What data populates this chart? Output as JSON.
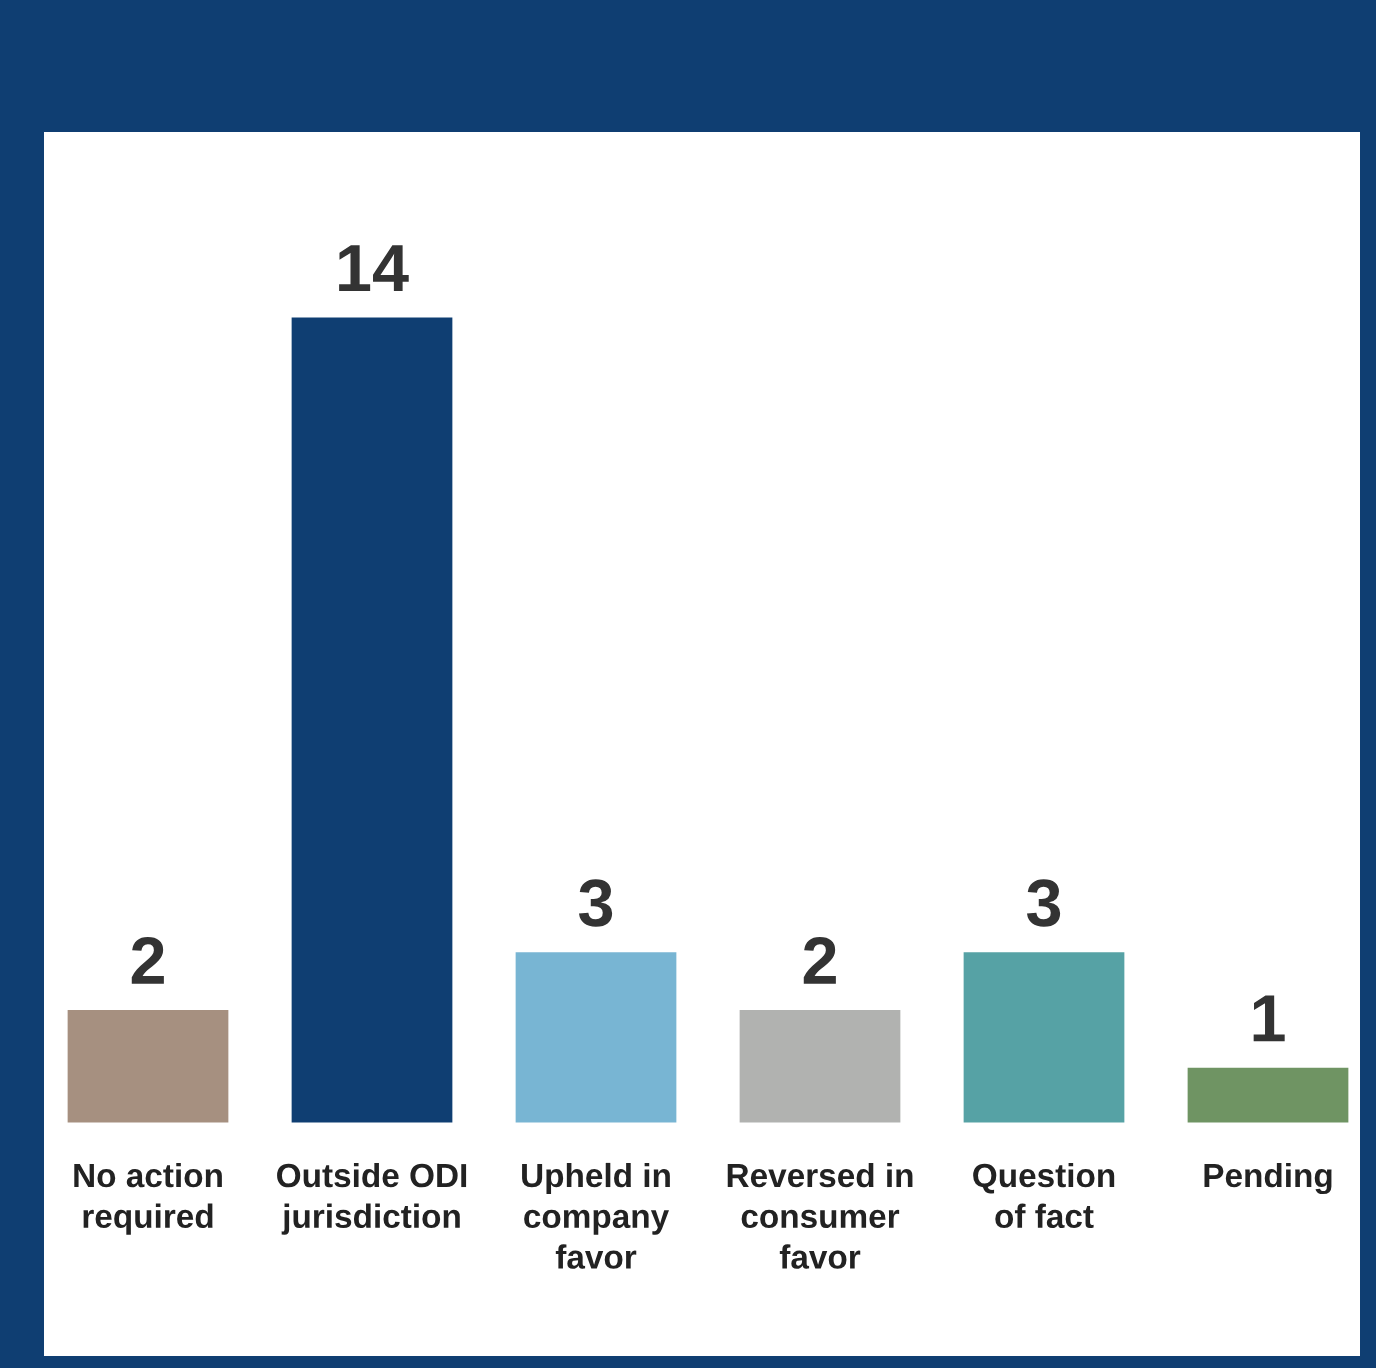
{
  "chart_data": {
    "type": "bar",
    "categories": [
      "No action\nrequired",
      "Outside ODI\njurisdiction",
      "Upheld in\ncompany\nfavor",
      "Reversed in\nconsumer\nfavor",
      "Question\nof fact",
      "Pending"
    ],
    "values": [
      2,
      14,
      3,
      2,
      3,
      1
    ],
    "colors": [
      "#a69080",
      "#0f3e72",
      "#78b5d3",
      "#b1b2b0",
      "#56a2a5",
      "#6f9463"
    ],
    "data_labels": true,
    "grid": false,
    "legend": false
  }
}
